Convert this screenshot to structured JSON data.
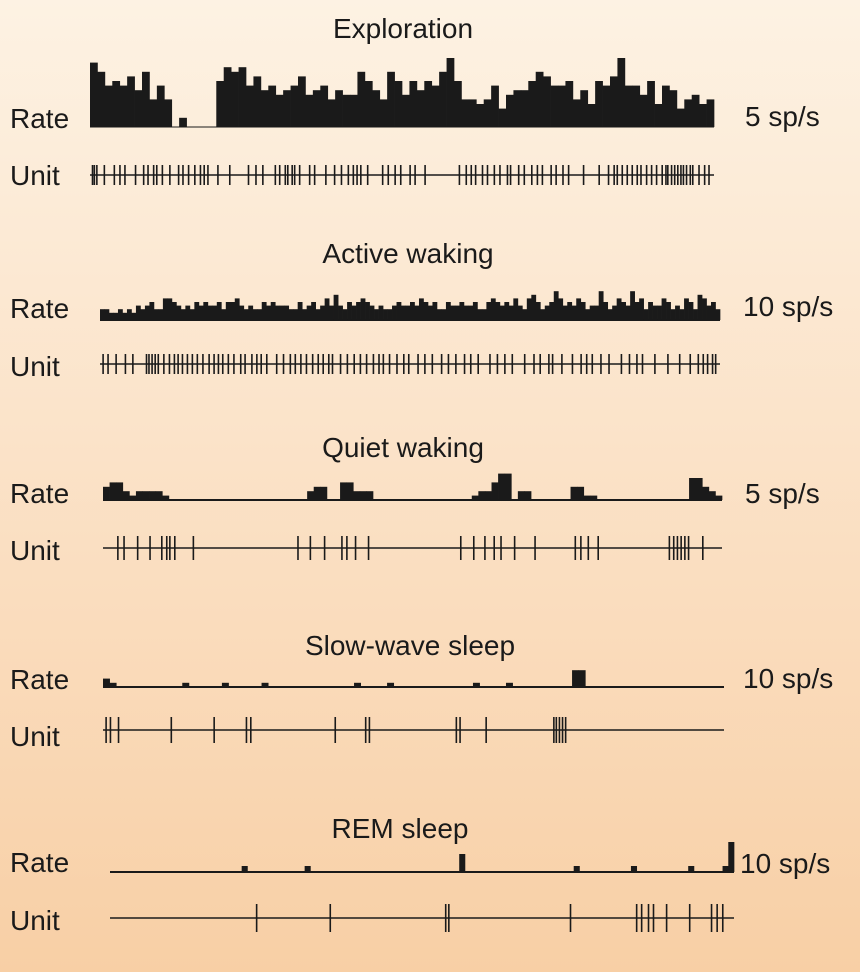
{
  "colors": {
    "ink": "#1a1a1a",
    "background_top": "#fdf2e3",
    "background_bottom": "#f8cfa5"
  },
  "chart_data": [
    {
      "type": "bar",
      "title": "Exploration",
      "row_labels": {
        "rate": "Rate",
        "unit": "Unit"
      },
      "scale_label": "5 sp/s",
      "rate_values": [
        14,
        12,
        9,
        10,
        9,
        11,
        8,
        12,
        6,
        9,
        6,
        0,
        2,
        0,
        0,
        0,
        0,
        10,
        13,
        12,
        13,
        9,
        11,
        8,
        9,
        7,
        8,
        9,
        11,
        7,
        8,
        9,
        6,
        8,
        7,
        7,
        12,
        10,
        8,
        6,
        12,
        10,
        7,
        10,
        8,
        10,
        9,
        12,
        15,
        10,
        6,
        6,
        5,
        6,
        9,
        4,
        7,
        8,
        8,
        10,
        12,
        11,
        9,
        9,
        10,
        6,
        8,
        5,
        10,
        9,
        11,
        15,
        9,
        9,
        7,
        10,
        5,
        9,
        8,
        4,
        6,
        7,
        5,
        6
      ],
      "unit_spikes": [
        0.4,
        0.7,
        1.1,
        2.3,
        3.9,
        4.8,
        5.6,
        7.3,
        8.6,
        9.3,
        10.2,
        10.7,
        11.6,
        12.8,
        14.2,
        14.9,
        15.8,
        16.8,
        17.7,
        18.3,
        18.9,
        20.5,
        22.4,
        25.4,
        26.6,
        27.7,
        29.7,
        30.4,
        31.3,
        31.7,
        32.4,
        32.8,
        33.6,
        35.2,
        36.0,
        37.8,
        39.2,
        40.3,
        41.4,
        42.2,
        42.8,
        43.4,
        44.5,
        46.9,
        47.8,
        48.9,
        49.8,
        51.3,
        52.1,
        53.7,
        59.2,
        60.3,
        61.1,
        61.8,
        62.9,
        63.7,
        64.8,
        65.7,
        66.9,
        67.4,
        68.7,
        69.6,
        70.8,
        71.7,
        72.5,
        73.9,
        74.7,
        75.8,
        76.7,
        79.1,
        81.6,
        83.1,
        84.0,
        84.5,
        85.3,
        86.1,
        86.9,
        87.7,
        88.3,
        89.2,
        90.0,
        90.8,
        91.7,
        92.3,
        92.6,
        93.2,
        93.7,
        94.2,
        94.7,
        95.1,
        95.6,
        96.2,
        96.6,
        97.6,
        98.5,
        99.2
      ]
    },
    {
      "type": "bar",
      "title": "Active waking",
      "row_labels": {
        "rate": "Rate",
        "unit": "Unit"
      },
      "scale_label": "10 sp/s",
      "rate_values": [
        3,
        3,
        2,
        2,
        3,
        2,
        3,
        2,
        4,
        3,
        4,
        5,
        3,
        3,
        6,
        6,
        5,
        4,
        3,
        4,
        3,
        5,
        4,
        5,
        4,
        4,
        5,
        3,
        5,
        5,
        6,
        4,
        3,
        4,
        3,
        3,
        5,
        4,
        5,
        4,
        4,
        4,
        3,
        3,
        5,
        3,
        4,
        5,
        3,
        4,
        6,
        4,
        7,
        4,
        3,
        5,
        4,
        5,
        6,
        5,
        4,
        3,
        4,
        3,
        3,
        4,
        5,
        4,
        4,
        5,
        4,
        6,
        5,
        4,
        5,
        3,
        3,
        5,
        4,
        4,
        5,
        4,
        4,
        5,
        3,
        3,
        5,
        6,
        5,
        4,
        5,
        4,
        6,
        4,
        3,
        6,
        7,
        5,
        3,
        4,
        5,
        8,
        6,
        4,
        5,
        4,
        6,
        5,
        3,
        4,
        4,
        8,
        5,
        3,
        4,
        6,
        5,
        4,
        8,
        5,
        6,
        3,
        5,
        4,
        4,
        6,
        5,
        3,
        4,
        3,
        6,
        5,
        3,
        7,
        6,
        4,
        5,
        3
      ],
      "unit_spikes": [
        0.5,
        1.3,
        2.6,
        4.1,
        5.3,
        7.5,
        7.9,
        8.4,
        8.9,
        9.4,
        10.3,
        11.2,
        12.0,
        12.6,
        13.3,
        14.1,
        14.9,
        15.7,
        16.6,
        17.6,
        18.4,
        19.1,
        19.8,
        20.7,
        21.6,
        22.7,
        23.4,
        24.5,
        25.3,
        26.0,
        26.9,
        28.5,
        29.6,
        30.7,
        31.5,
        32.4,
        33.3,
        34.3,
        35.2,
        36.0,
        36.9,
        37.5,
        38.8,
        39.9,
        41.0,
        42.0,
        43.0,
        44.1,
        45.0,
        45.7,
        46.7,
        47.9,
        49.0,
        49.8,
        51.3,
        52.4,
        53.6,
        55.1,
        56.2,
        57.4,
        58.8,
        59.8,
        61.0,
        62.9,
        64.1,
        65.3,
        66.5,
        68.5,
        70.0,
        71.0,
        72.4,
        73.0,
        74.5,
        76.2,
        77.6,
        78.5,
        79.4,
        80.8,
        82.1,
        84.1,
        85.4,
        86.6,
        87.5,
        89.5,
        91.6,
        93.5,
        95.2,
        96.5,
        97.3,
        98.0,
        98.8,
        99.3
      ]
    },
    {
      "type": "bar",
      "title": "Quiet waking",
      "row_labels": {
        "rate": "Rate",
        "unit": "Unit"
      },
      "scale_label": "5 sp/s",
      "rate_values": [
        3,
        4,
        4,
        2,
        1,
        2,
        2,
        2,
        2,
        1,
        0,
        0,
        0,
        0,
        0,
        0,
        0,
        0,
        0,
        0,
        0,
        0,
        0,
        0,
        0,
        0,
        0,
        0,
        0,
        0,
        0,
        2,
        3,
        3,
        0,
        0,
        4,
        4,
        2,
        2,
        2,
        0,
        0,
        0,
        0,
        0,
        0,
        0,
        0,
        0,
        0,
        0,
        0,
        0,
        0,
        0,
        1,
        2,
        2,
        4,
        6,
        6,
        0,
        2,
        2,
        0,
        0,
        0,
        0,
        0,
        0,
        3,
        3,
        1,
        1,
        0,
        0,
        0,
        0,
        0,
        0,
        0,
        0,
        0,
        0,
        0,
        0,
        0,
        0,
        5,
        5,
        3,
        2,
        1
      ],
      "unit_spikes": [
        2.4,
        3.4,
        5.6,
        7.6,
        9.5,
        10.3,
        10.8,
        11.6,
        14.6,
        31.5,
        33.5,
        35.8,
        38.6,
        39.4,
        40.8,
        42.9,
        57.8,
        59.9,
        61.7,
        63.2,
        64.3,
        66.5,
        69.8,
        76.3,
        77.2,
        78.4,
        80.0,
        91.5,
        92.2,
        92.8,
        93.4,
        94.0,
        94.6,
        96.9
      ]
    },
    {
      "type": "bar",
      "title": "Slow-wave sleep",
      "row_labels": {
        "rate": "Rate",
        "unit": "Unit"
      },
      "scale_label": "10 sp/s",
      "rate_values": [
        2,
        1,
        0,
        0,
        0,
        0,
        0,
        0,
        0,
        0,
        0,
        0,
        1,
        0,
        0,
        0,
        0,
        0,
        1,
        0,
        0,
        0,
        0,
        0,
        1,
        0,
        0,
        0,
        0,
        0,
        0,
        0,
        0,
        0,
        0,
        0,
        0,
        0,
        1,
        0,
        0,
        0,
        0,
        1,
        0,
        0,
        0,
        0,
        0,
        0,
        0,
        0,
        0,
        0,
        0,
        0,
        1,
        0,
        0,
        0,
        0,
        1,
        0,
        0,
        0,
        0,
        0,
        0,
        0,
        0,
        0,
        4,
        4,
        0,
        0,
        0,
        0,
        0,
        0,
        0,
        0,
        0,
        0,
        0,
        0,
        0,
        0,
        0,
        0,
        0,
        0,
        0,
        0,
        0
      ],
      "unit_spikes": [
        0.5,
        1.2,
        2.5,
        11.0,
        17.9,
        23.1,
        23.8,
        37.4,
        42.3,
        42.9,
        56.9,
        57.5,
        61.7,
        72.6,
        73.0,
        73.5,
        74.0,
        74.5
      ]
    },
    {
      "type": "bar",
      "title": "REM sleep",
      "row_labels": {
        "rate": "Rate",
        "unit": "Unit"
      },
      "scale_label": "10 sp/s",
      "rate_values": [
        0,
        0,
        0,
        0,
        0,
        0,
        0,
        0,
        0,
        0,
        0,
        0,
        0,
        0,
        0,
        0,
        0,
        0,
        0,
        0,
        0,
        0,
        0,
        1,
        0,
        0,
        0,
        0,
        0,
        0,
        0,
        0,
        0,
        0,
        1,
        0,
        0,
        0,
        0,
        0,
        0,
        0,
        0,
        0,
        0,
        0,
        0,
        0,
        0,
        0,
        0,
        0,
        0,
        0,
        0,
        0,
        0,
        0,
        0,
        0,
        0,
        3,
        0,
        0,
        0,
        0,
        0,
        0,
        0,
        0,
        0,
        0,
        0,
        0,
        0,
        0,
        0,
        0,
        0,
        0,
        0,
        1,
        0,
        0,
        0,
        0,
        0,
        0,
        0,
        0,
        0,
        1,
        0,
        0,
        0,
        0,
        0,
        0,
        0,
        0,
        0,
        1,
        0,
        0,
        0,
        0,
        0,
        1,
        5
      ],
      "unit_spikes": [
        23.5,
        35.3,
        53.8,
        54.3,
        73.8,
        84.4,
        85.2,
        86.3,
        87.1,
        89.2,
        92.9,
        96.4,
        97.3,
        98.2
      ]
    }
  ]
}
